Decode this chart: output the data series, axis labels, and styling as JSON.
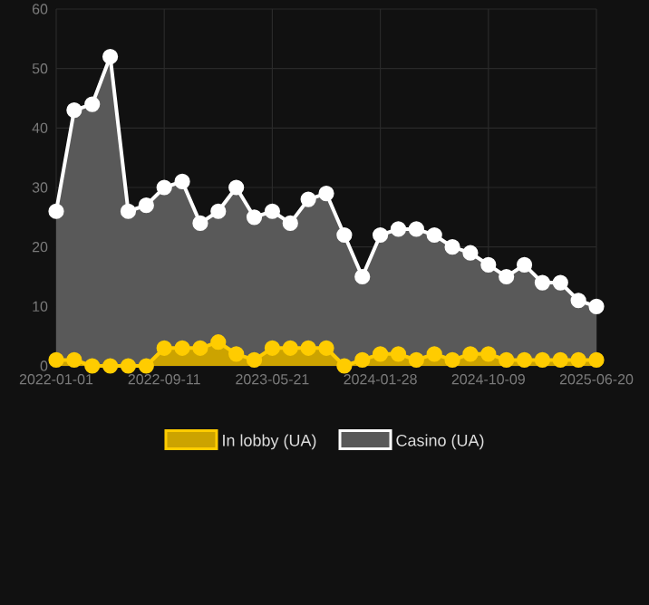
{
  "chart_data": {
    "type": "area",
    "categories": [
      "2022-01-01",
      null,
      null,
      null,
      null,
      null,
      "2022-09-11",
      null,
      null,
      null,
      null,
      null,
      "2023-05-21",
      null,
      null,
      null,
      null,
      null,
      "2024-01-28",
      null,
      null,
      null,
      null,
      null,
      "2024-10-09",
      null,
      null,
      null,
      null,
      null,
      "2025-06-20"
    ],
    "series": [
      {
        "name": "In lobby (UA)",
        "color": "#ffcc00",
        "values": [
          1,
          1,
          0,
          0,
          0,
          0,
          3,
          3,
          3,
          4,
          2,
          1,
          3,
          3,
          3,
          3,
          0,
          1,
          2,
          2,
          1,
          2,
          1,
          2,
          2,
          1,
          1,
          1,
          1,
          1,
          1
        ]
      },
      {
        "name": "Casino (UA)",
        "color": "#ffffff",
        "values": [
          26,
          43,
          44,
          52,
          26,
          27,
          30,
          31,
          24,
          26,
          30,
          25,
          26,
          24,
          28,
          29,
          22,
          15,
          22,
          23,
          23,
          22,
          20,
          19,
          17,
          15,
          17,
          14,
          14,
          11,
          10
        ]
      }
    ],
    "ylim": [
      0,
      60
    ],
    "yticks": [
      0,
      10,
      20,
      30,
      40,
      50,
      60
    ],
    "grid": true,
    "legend": "bottom",
    "marker": "circle",
    "line_style": "solid"
  }
}
